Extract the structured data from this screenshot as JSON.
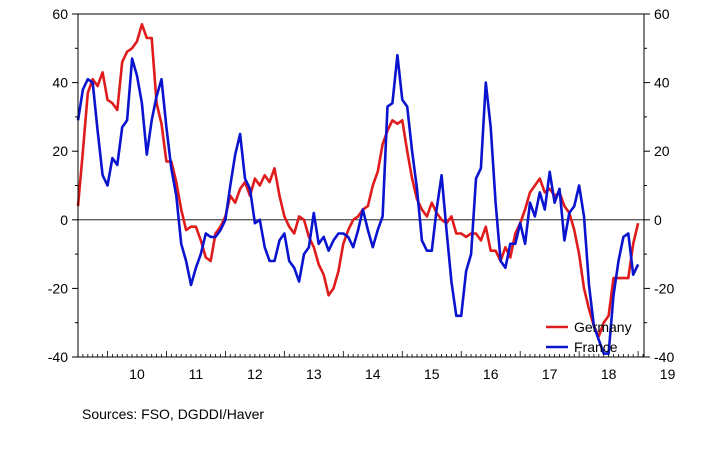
{
  "chart_data": {
    "type": "line",
    "x_unit": "year",
    "x_range": [
      2009.5,
      2019.1
    ],
    "y_range": [
      -40,
      60
    ],
    "y_ticks": [
      60,
      40,
      20,
      0,
      -20,
      -40
    ],
    "y_tick_labels": [
      "60",
      "40",
      "20",
      "0",
      "-20",
      "-40"
    ],
    "x_tick_labels": [
      {
        "label": "10",
        "year": 2010
      },
      {
        "label": "11",
        "year": 2011
      },
      {
        "label": "12",
        "year": 2012
      },
      {
        "label": "13",
        "year": 2013
      },
      {
        "label": "14",
        "year": 2014
      },
      {
        "label": "15",
        "year": 2015
      },
      {
        "label": "16",
        "year": 2016
      },
      {
        "label": "17",
        "year": 2017
      },
      {
        "label": "18",
        "year": 2018
      },
      {
        "label": "19",
        "year": 2019
      }
    ],
    "zero_line": true,
    "right_axis_mirror": true,
    "legend_position": "bottom-right",
    "series": [
      {
        "name": "Germany",
        "color": "#e01b1b",
        "points": [
          [
            2009.5,
            4
          ],
          [
            2009.583,
            20
          ],
          [
            2009.667,
            37
          ],
          [
            2009.75,
            41
          ],
          [
            2009.833,
            39
          ],
          [
            2009.917,
            43
          ],
          [
            2010.0,
            35
          ],
          [
            2010.083,
            34
          ],
          [
            2010.167,
            32
          ],
          [
            2010.25,
            46
          ],
          [
            2010.333,
            49
          ],
          [
            2010.417,
            50
          ],
          [
            2010.5,
            52
          ],
          [
            2010.583,
            57
          ],
          [
            2010.667,
            53
          ],
          [
            2010.75,
            53
          ],
          [
            2010.833,
            34
          ],
          [
            2010.917,
            28
          ],
          [
            2011.0,
            17
          ],
          [
            2011.083,
            17
          ],
          [
            2011.167,
            11
          ],
          [
            2011.25,
            3
          ],
          [
            2011.333,
            -3
          ],
          [
            2011.417,
            -2
          ],
          [
            2011.5,
            -2
          ],
          [
            2011.583,
            -6
          ],
          [
            2011.667,
            -11
          ],
          [
            2011.75,
            -12
          ],
          [
            2011.833,
            -4
          ],
          [
            2011.917,
            -2
          ],
          [
            2012.0,
            1
          ],
          [
            2012.083,
            7
          ],
          [
            2012.167,
            5
          ],
          [
            2012.25,
            9
          ],
          [
            2012.333,
            11
          ],
          [
            2012.417,
            7
          ],
          [
            2012.5,
            12
          ],
          [
            2012.583,
            10
          ],
          [
            2012.667,
            13
          ],
          [
            2012.75,
            11
          ],
          [
            2012.833,
            15
          ],
          [
            2012.917,
            7
          ],
          [
            2013.0,
            1
          ],
          [
            2013.083,
            -2
          ],
          [
            2013.167,
            -4
          ],
          [
            2013.25,
            1
          ],
          [
            2013.333,
            0
          ],
          [
            2013.417,
            -5
          ],
          [
            2013.5,
            -8
          ],
          [
            2013.583,
            -13
          ],
          [
            2013.667,
            -16
          ],
          [
            2013.75,
            -22
          ],
          [
            2013.833,
            -20
          ],
          [
            2013.917,
            -15
          ],
          [
            2014.0,
            -7
          ],
          [
            2014.083,
            -3
          ],
          [
            2014.167,
            0
          ],
          [
            2014.25,
            1
          ],
          [
            2014.333,
            3
          ],
          [
            2014.417,
            4
          ],
          [
            2014.5,
            10
          ],
          [
            2014.583,
            14
          ],
          [
            2014.667,
            22
          ],
          [
            2014.75,
            26
          ],
          [
            2014.833,
            29
          ],
          [
            2014.917,
            28
          ],
          [
            2015.0,
            29
          ],
          [
            2015.083,
            20
          ],
          [
            2015.167,
            12
          ],
          [
            2015.25,
            6
          ],
          [
            2015.333,
            3
          ],
          [
            2015.417,
            1
          ],
          [
            2015.5,
            5
          ],
          [
            2015.583,
            2
          ],
          [
            2015.667,
            0
          ],
          [
            2015.75,
            -1
          ],
          [
            2015.833,
            1
          ],
          [
            2015.917,
            -4
          ],
          [
            2016.0,
            -4
          ],
          [
            2016.083,
            -5
          ],
          [
            2016.167,
            -4
          ],
          [
            2016.25,
            -4
          ],
          [
            2016.333,
            -6
          ],
          [
            2016.417,
            -2
          ],
          [
            2016.5,
            -9
          ],
          [
            2016.583,
            -9
          ],
          [
            2016.667,
            -12
          ],
          [
            2016.75,
            -8
          ],
          [
            2016.833,
            -11
          ],
          [
            2016.917,
            -4
          ],
          [
            2017.0,
            -1
          ],
          [
            2017.083,
            3
          ],
          [
            2017.167,
            8
          ],
          [
            2017.25,
            10
          ],
          [
            2017.333,
            12
          ],
          [
            2017.417,
            8
          ],
          [
            2017.5,
            9
          ],
          [
            2017.583,
            7
          ],
          [
            2017.667,
            8
          ],
          [
            2017.75,
            4
          ],
          [
            2017.833,
            2
          ],
          [
            2017.917,
            -3
          ],
          [
            2018.0,
            -10
          ],
          [
            2018.083,
            -20
          ],
          [
            2018.167,
            -26
          ],
          [
            2018.25,
            -31
          ],
          [
            2018.333,
            -34
          ],
          [
            2018.417,
            -30
          ],
          [
            2018.5,
            -28
          ],
          [
            2018.583,
            -17
          ],
          [
            2018.667,
            -17
          ],
          [
            2018.75,
            -17
          ],
          [
            2018.833,
            -17
          ],
          [
            2018.917,
            -7
          ],
          [
            2019.0,
            -1
          ]
        ]
      },
      {
        "name": "France",
        "color": "#0a14cf",
        "points": [
          [
            2009.5,
            29
          ],
          [
            2009.583,
            38
          ],
          [
            2009.667,
            41
          ],
          [
            2009.75,
            40
          ],
          [
            2009.833,
            26
          ],
          [
            2009.917,
            13
          ],
          [
            2010.0,
            10
          ],
          [
            2010.083,
            18
          ],
          [
            2010.167,
            16
          ],
          [
            2010.25,
            27
          ],
          [
            2010.333,
            29
          ],
          [
            2010.417,
            47
          ],
          [
            2010.5,
            42
          ],
          [
            2010.583,
            34
          ],
          [
            2010.667,
            19
          ],
          [
            2010.75,
            29
          ],
          [
            2010.833,
            36
          ],
          [
            2010.917,
            41
          ],
          [
            2011.0,
            27
          ],
          [
            2011.083,
            15
          ],
          [
            2011.167,
            7
          ],
          [
            2011.25,
            -7
          ],
          [
            2011.333,
            -12
          ],
          [
            2011.417,
            -19
          ],
          [
            2011.5,
            -14
          ],
          [
            2011.583,
            -10
          ],
          [
            2011.667,
            -4
          ],
          [
            2011.75,
            -5
          ],
          [
            2011.833,
            -5
          ],
          [
            2011.917,
            -3
          ],
          [
            2012.0,
            0
          ],
          [
            2012.083,
            10
          ],
          [
            2012.167,
            19
          ],
          [
            2012.25,
            25
          ],
          [
            2012.333,
            12
          ],
          [
            2012.417,
            9
          ],
          [
            2012.5,
            -1
          ],
          [
            2012.583,
            0
          ],
          [
            2012.667,
            -8
          ],
          [
            2012.75,
            -12
          ],
          [
            2012.833,
            -12
          ],
          [
            2012.917,
            -6
          ],
          [
            2013.0,
            -4
          ],
          [
            2013.083,
            -12
          ],
          [
            2013.167,
            -14
          ],
          [
            2013.25,
            -18
          ],
          [
            2013.333,
            -10
          ],
          [
            2013.417,
            -8
          ],
          [
            2013.5,
            2
          ],
          [
            2013.583,
            -7
          ],
          [
            2013.667,
            -5
          ],
          [
            2013.75,
            -9
          ],
          [
            2013.833,
            -6
          ],
          [
            2013.917,
            -4
          ],
          [
            2014.0,
            -4
          ],
          [
            2014.083,
            -5
          ],
          [
            2014.167,
            -8
          ],
          [
            2014.25,
            -3
          ],
          [
            2014.333,
            3
          ],
          [
            2014.417,
            -3
          ],
          [
            2014.5,
            -8
          ],
          [
            2014.583,
            -3
          ],
          [
            2014.667,
            1
          ],
          [
            2014.75,
            33
          ],
          [
            2014.833,
            34
          ],
          [
            2014.917,
            48
          ],
          [
            2015.0,
            35
          ],
          [
            2015.083,
            33
          ],
          [
            2015.167,
            20
          ],
          [
            2015.25,
            9
          ],
          [
            2015.333,
            -6
          ],
          [
            2015.417,
            -9
          ],
          [
            2015.5,
            -9
          ],
          [
            2015.583,
            3
          ],
          [
            2015.667,
            13
          ],
          [
            2015.75,
            -3
          ],
          [
            2015.833,
            -18
          ],
          [
            2015.917,
            -28
          ],
          [
            2016.0,
            -28
          ],
          [
            2016.083,
            -15
          ],
          [
            2016.167,
            -10
          ],
          [
            2016.25,
            12
          ],
          [
            2016.333,
            15
          ],
          [
            2016.417,
            40
          ],
          [
            2016.5,
            27
          ],
          [
            2016.583,
            5
          ],
          [
            2016.667,
            -12
          ],
          [
            2016.75,
            -14
          ],
          [
            2016.833,
            -7
          ],
          [
            2016.917,
            -7
          ],
          [
            2017.0,
            -1
          ],
          [
            2017.083,
            -7
          ],
          [
            2017.167,
            5
          ],
          [
            2017.25,
            1
          ],
          [
            2017.333,
            8
          ],
          [
            2017.417,
            3
          ],
          [
            2017.5,
            14
          ],
          [
            2017.583,
            5
          ],
          [
            2017.667,
            9
          ],
          [
            2017.75,
            -6
          ],
          [
            2017.833,
            2
          ],
          [
            2017.917,
            4
          ],
          [
            2018.0,
            10
          ],
          [
            2018.083,
            1
          ],
          [
            2018.167,
            -19
          ],
          [
            2018.25,
            -31
          ],
          [
            2018.333,
            -35
          ],
          [
            2018.417,
            -39
          ],
          [
            2018.5,
            -39
          ],
          [
            2018.583,
            -22
          ],
          [
            2018.667,
            -12
          ],
          [
            2018.75,
            -5
          ],
          [
            2018.833,
            -4
          ],
          [
            2018.917,
            -16
          ],
          [
            2019.0,
            -13
          ]
        ]
      }
    ]
  },
  "source_note": "Sources:  FSO, DGDDI/Haver"
}
